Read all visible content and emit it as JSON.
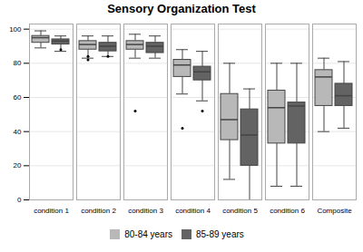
{
  "chart_data": {
    "type": "box",
    "title": "Sensory Organization Test",
    "categories": [
      "condition 1",
      "condition 2",
      "condition 3",
      "condition 4",
      "condition 5",
      "condition 6",
      "Composite"
    ],
    "series": [
      {
        "name": "80-84 years",
        "color": "#b8b8b8",
        "boxes": [
          {
            "q1": 92,
            "median": 95,
            "q3": 96,
            "whislo": 89,
            "whishi": 99,
            "fliers": []
          },
          {
            "q1": 88,
            "median": 91,
            "q3": 93,
            "whislo": 83,
            "whishi": 96,
            "fliers": [
              82,
              84
            ]
          },
          {
            "q1": 88,
            "median": 91,
            "q3": 93,
            "whislo": 83,
            "whishi": 97,
            "fliers": [
              52
            ]
          },
          {
            "q1": 72,
            "median": 79,
            "q3": 82,
            "whislo": 62,
            "whishi": 88,
            "fliers": [
              42
            ]
          },
          {
            "q1": 35,
            "median": 47,
            "q3": 62,
            "whislo": 12,
            "whishi": 80,
            "fliers": []
          },
          {
            "q1": 33,
            "median": 54,
            "q3": 64,
            "whislo": 8,
            "whishi": 80,
            "fliers": []
          },
          {
            "q1": 55,
            "median": 72,
            "q3": 76,
            "whislo": 40,
            "whishi": 83,
            "fliers": []
          }
        ]
      },
      {
        "name": "85-89 years",
        "color": "#636363",
        "boxes": [
          {
            "q1": 91,
            "median": 93,
            "q3": 94,
            "whislo": 87,
            "whishi": 96,
            "fliers": [
              88
            ]
          },
          {
            "q1": 87,
            "median": 90,
            "q3": 92,
            "whislo": 84,
            "whishi": 96,
            "fliers": [
              84
            ]
          },
          {
            "q1": 86,
            "median": 90,
            "q3": 92,
            "whislo": 83,
            "whishi": 96,
            "fliers": []
          },
          {
            "q1": 70,
            "median": 75,
            "q3": 78,
            "whislo": 58,
            "whishi": 87,
            "fliers": [
              52
            ]
          },
          {
            "q1": 20,
            "median": 38,
            "q3": 53,
            "whislo": 0,
            "whishi": 65,
            "fliers": []
          },
          {
            "q1": 33,
            "median": 55,
            "q3": 57,
            "whislo": 8,
            "whishi": 80,
            "fliers": []
          },
          {
            "q1": 55,
            "median": 61,
            "q3": 68,
            "whislo": 42,
            "whishi": 81,
            "fliers": []
          }
        ]
      }
    ],
    "ylim": [
      0,
      103
    ],
    "yticks": [
      0,
      20,
      40,
      60,
      80,
      100
    ],
    "grid": true,
    "legend": "bottom"
  }
}
